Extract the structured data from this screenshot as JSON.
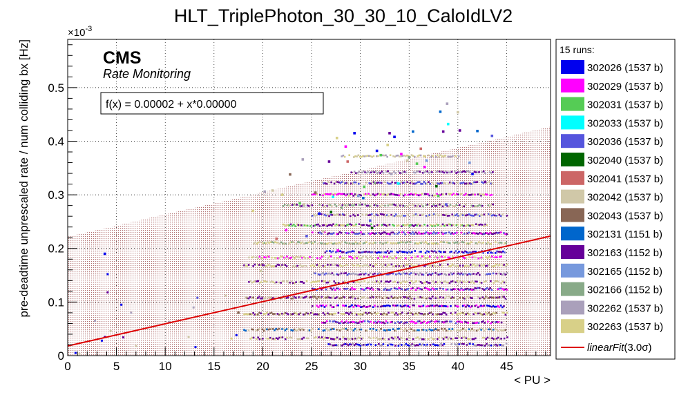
{
  "chart_data": {
    "type": "scatter",
    "title": "HLT_TriplePhoton_30_30_10_CaloIdLV2",
    "xlabel": "< PU >",
    "ylabel": "pre-deadtime unprescaled rate / num colliding bx [Hz]",
    "y_multiplier": "×10",
    "y_multiplier_exp": "-3",
    "xlim": [
      0,
      49.5
    ],
    "ylim": [
      0,
      0.59
    ],
    "x_ticks": [
      0,
      5,
      10,
      15,
      20,
      25,
      30,
      35,
      40,
      45
    ],
    "x_tick_labels": [
      "0",
      "5",
      "10",
      "15",
      "20",
      "25",
      "30",
      "35",
      "40",
      "45"
    ],
    "y_ticks": [
      0,
      0.1,
      0.2,
      0.3,
      0.4,
      0.5
    ],
    "y_tick_labels": [
      "0",
      "0.1",
      "0.2",
      "0.3",
      "0.4",
      "0.5"
    ],
    "grid": true,
    "legend_position": "right",
    "legend_header": "15 runs:",
    "cms_label": "CMS",
    "cms_sublabel": "Rate Monitoring",
    "fit_label": "f(x) = 0.00002 + x*0.00000",
    "fit": {
      "name": "linearFit(3.0σ)",
      "label_main": "linearFit",
      "label_sigma": "(3.0σ)",
      "color": "#dd0000",
      "points": [
        [
          0,
          0.018
        ],
        [
          49.5,
          0.223
        ]
      ]
    },
    "band": {
      "color": "#b07070",
      "upper": [
        [
          0,
          0.222
        ],
        [
          49.5,
          0.427
        ]
      ],
      "lower": [
        [
          0,
          0
        ],
        [
          49.5,
          0
        ]
      ]
    },
    "series": [
      {
        "name": "302026",
        "label": "302026 (1537 b)",
        "color": "#0000ee",
        "points": [
          [
            29.4,
            0.415
          ],
          [
            33.5,
            0.408
          ],
          [
            3.8,
            0.19
          ],
          [
            31.7,
            0.382
          ],
          [
            41.5,
            0.339
          ],
          [
            25.8,
            0.265
          ]
        ]
      },
      {
        "name": "302029",
        "label": "302029 (1537 b)",
        "color": "#ff00ff",
        "points": [
          [
            28.5,
            0.39
          ],
          [
            34.2,
            0.376
          ],
          [
            36.6,
            0.352
          ],
          [
            22.4,
            0.234
          ],
          [
            27.7,
            0.196
          ]
        ]
      },
      {
        "name": "302031",
        "label": "302031 (1537 b)",
        "color": "#55cc55",
        "points": [
          [
            32.1,
            0.374
          ],
          [
            35.8,
            0.358
          ],
          [
            30.4,
            0.315
          ],
          [
            23.8,
            0.284
          ],
          [
            38.0,
            0.298
          ]
        ]
      },
      {
        "name": "302033",
        "label": "302033 (1537 b)",
        "color": "#00ffff",
        "points": [
          [
            39.0,
            0.432
          ],
          [
            27.2,
            0.296
          ],
          [
            33.9,
            0.321
          ]
        ]
      },
      {
        "name": "302036",
        "label": "302036 (1537 b)",
        "color": "#5555dd",
        "points": [
          [
            43.5,
            0.41
          ],
          [
            24.5,
            0.223
          ],
          [
            31.0,
            0.252
          ],
          [
            38.8,
            0.282
          ]
        ]
      },
      {
        "name": "302040",
        "label": "302040 (1537 b)",
        "color": "#006600",
        "points": [
          [
            31.2,
            0.238
          ],
          [
            37.8,
            0.316
          ],
          [
            27.0,
            0.268
          ]
        ]
      },
      {
        "name": "302041",
        "label": "302041 (1537 b)",
        "color": "#cc6666",
        "points": [
          [
            28.7,
            0.362
          ],
          [
            36.2,
            0.386
          ],
          [
            21.4,
            0.218
          ]
        ]
      },
      {
        "name": "302042",
        "label": "302042 (1537 b)",
        "color": "#d0c8a8",
        "points": [
          [
            40.0,
            0.454
          ],
          [
            34.8,
            0.364
          ],
          [
            19.8,
            0.158
          ],
          [
            21.0,
            0.308
          ],
          [
            24.2,
            0.282
          ],
          [
            26.2,
            0.232
          ]
        ]
      },
      {
        "name": "302043",
        "label": "302043 (1537 b)",
        "color": "#886655",
        "points": [
          [
            17.5,
            0.08
          ],
          [
            22.8,
            0.338
          ],
          [
            25.4,
            0.304
          ]
        ]
      },
      {
        "name": "302131",
        "label": "302131 (1151 b)",
        "color": "#0066cc",
        "points": [
          [
            38.2,
            0.455
          ],
          [
            42.0,
            0.419
          ],
          [
            35.4,
            0.418
          ],
          [
            30.3,
            0.294
          ]
        ]
      },
      {
        "name": "302163",
        "label": "302163 (1152 b)",
        "color": "#660099",
        "points": [
          [
            33.0,
            0.415
          ],
          [
            38.5,
            0.418
          ],
          [
            40.2,
            0.42
          ],
          [
            42.8,
            0.324
          ],
          [
            26.8,
            0.362
          ]
        ]
      },
      {
        "name": "302165",
        "label": "302165 (1152 b)",
        "color": "#7799dd",
        "points": [
          [
            36.8,
            0.364
          ],
          [
            29.8,
            0.298
          ],
          [
            41.2,
            0.36
          ]
        ]
      },
      {
        "name": "302166",
        "label": "302166 (1152 b)",
        "color": "#88aa88",
        "points": [
          [
            35.0,
            0.37
          ],
          [
            31.5,
            0.322
          ],
          [
            28.1,
            0.276
          ]
        ]
      },
      {
        "name": "302262",
        "label": "302262 (1537 b)",
        "color": "#aaa0bb",
        "points": [
          [
            38.9,
            0.47
          ],
          [
            24.1,
            0.366
          ],
          [
            33.2,
            0.339
          ],
          [
            20.2,
            0.306
          ]
        ]
      },
      {
        "name": "302263",
        "label": "302263 (1537 b)",
        "color": "#d8d088",
        "points": [
          [
            27.6,
            0.406
          ],
          [
            32.8,
            0.393
          ],
          [
            22.0,
            0.3
          ],
          [
            19.0,
            0.27
          ]
        ]
      }
    ],
    "bands_hint": [
      {
        "y": 0.02,
        "x0": 26.5,
        "x1": 45,
        "colors": [
          "#0000ee",
          "#660099",
          "#aaa0bb"
        ]
      },
      {
        "y": 0.032,
        "x0": 18.5,
        "x1": 45,
        "colors": [
          "#d8d088",
          "#d0c8a8",
          "#660099"
        ]
      },
      {
        "y": 0.048,
        "x0": 18,
        "x1": 44.8,
        "colors": [
          "#886655",
          "#d0c8a8",
          "#0066cc"
        ]
      },
      {
        "y": 0.062,
        "x0": 26,
        "x1": 44.5,
        "colors": [
          "#660099",
          "#5555dd",
          "#ff00ff"
        ]
      },
      {
        "y": 0.078,
        "x0": 18,
        "x1": 45,
        "colors": [
          "#d8d088",
          "#886655",
          "#660099"
        ]
      },
      {
        "y": 0.092,
        "x0": 25,
        "x1": 44.8,
        "colors": [
          "#660099",
          "#ff00ff",
          "#0000ee"
        ]
      },
      {
        "y": 0.108,
        "x0": 18,
        "x1": 45,
        "colors": [
          "#d0c8a8",
          "#886655",
          "#660099"
        ]
      },
      {
        "y": 0.124,
        "x0": 25,
        "x1": 45,
        "colors": [
          "#660099",
          "#ff00ff",
          "#5555dd"
        ]
      },
      {
        "y": 0.137,
        "x0": 18.5,
        "x1": 45,
        "colors": [
          "#d8d088",
          "#d0c8a8",
          "#660099"
        ]
      },
      {
        "y": 0.152,
        "x0": 25,
        "x1": 45,
        "colors": [
          "#660099",
          "#5555dd",
          "#aaa0bb"
        ]
      },
      {
        "y": 0.168,
        "x0": 18,
        "x1": 45,
        "colors": [
          "#d0c8a8",
          "#d8d088",
          "#660099"
        ]
      },
      {
        "y": 0.183,
        "x0": 18.5,
        "x1": 44.5,
        "colors": [
          "#d8d088",
          "#d0c8a8",
          "#ff00ff"
        ]
      },
      {
        "y": 0.193,
        "x0": 26,
        "x1": 44.8,
        "colors": [
          "#660099",
          "#5555dd",
          "#0000ee"
        ]
      },
      {
        "y": 0.21,
        "x0": 19,
        "x1": 45,
        "colors": [
          "#d0c8a8",
          "#d8d088",
          "#88aa88"
        ]
      },
      {
        "y": 0.228,
        "x0": 25,
        "x1": 45,
        "colors": [
          "#660099",
          "#ff00ff",
          "#5555dd"
        ]
      },
      {
        "y": 0.243,
        "x0": 22,
        "x1": 43,
        "colors": [
          "#d8d088",
          "#660099",
          "#55cc55"
        ]
      },
      {
        "y": 0.262,
        "x0": 25,
        "x1": 45,
        "colors": [
          "#660099",
          "#d0c8a8",
          "#5555dd"
        ]
      },
      {
        "y": 0.28,
        "x0": 22,
        "x1": 43.5,
        "colors": [
          "#d0c8a8",
          "#660099",
          "#88aa88"
        ]
      },
      {
        "y": 0.3,
        "x0": 25,
        "x1": 43.5,
        "colors": [
          "#660099",
          "#ff00ff",
          "#d8d088"
        ]
      },
      {
        "y": 0.322,
        "x0": 26,
        "x1": 43.5,
        "colors": [
          "#660099",
          "#5555dd",
          "#d0c8a8"
        ]
      },
      {
        "y": 0.342,
        "x0": 29,
        "x1": 43.5,
        "colors": [
          "#660099",
          "#aaa0bb"
        ]
      },
      {
        "y": 0.372,
        "x0": 28,
        "x1": 40,
        "colors": [
          "#aaa0bb",
          "#d0c8a8",
          "#d8d088"
        ]
      }
    ],
    "sparse_low": [
      [
        0.8,
        0.005,
        "#0000ee"
      ],
      [
        1.2,
        0.003,
        "#d0c8a8"
      ],
      [
        3.5,
        0.028,
        "#0000ee"
      ],
      [
        3.8,
        0.035,
        "#660099"
      ],
      [
        4.1,
        0.152,
        "#0000ee"
      ],
      [
        4.1,
        0.118,
        "#660099"
      ],
      [
        5.5,
        0.095,
        "#0000ee"
      ],
      [
        5.7,
        0.034,
        "#660099"
      ],
      [
        4.4,
        0.046,
        "#d0c8a8"
      ],
      [
        2.8,
        0.065,
        "#aaa0bb"
      ],
      [
        6.5,
        0.08,
        "#aaa0bb"
      ],
      [
        10.4,
        0.063,
        "#aaa0bb"
      ],
      [
        12.4,
        0.035,
        "#d0c8a8"
      ],
      [
        13.1,
        0.016,
        "#0000ee"
      ],
      [
        12.9,
        0.09,
        "#aaa0bb"
      ],
      [
        16.2,
        0.112,
        "#d0c8a8"
      ],
      [
        17.3,
        0.038,
        "#0000ee"
      ],
      [
        16.8,
        0.032,
        "#d8d088"
      ],
      [
        13.3,
        0.108,
        "#5555dd"
      ],
      [
        7.0,
        0.018,
        "#d0c8a8"
      ]
    ]
  }
}
